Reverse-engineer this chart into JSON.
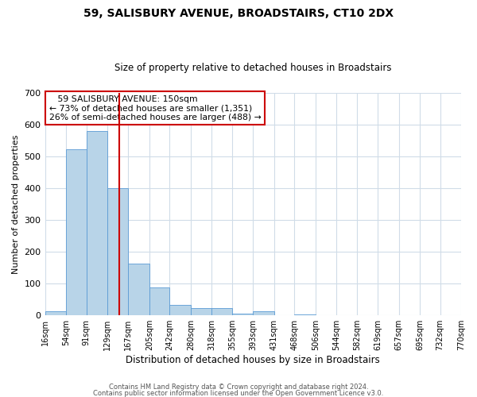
{
  "title": "59, SALISBURY AVENUE, BROADSTAIRS, CT10 2DX",
  "subtitle": "Size of property relative to detached houses in Broadstairs",
  "xlabel": "Distribution of detached houses by size in Broadstairs",
  "ylabel": "Number of detached properties",
  "footer_line1": "Contains HM Land Registry data © Crown copyright and database right 2024.",
  "footer_line2": "Contains public sector information licensed under the Open Government Licence v3.0.",
  "bar_edges": [
    16,
    54,
    91,
    129,
    167,
    205,
    242,
    280,
    318,
    355,
    393,
    431,
    468,
    506,
    544,
    582,
    619,
    657,
    695,
    732,
    770
  ],
  "bar_heights": [
    14,
    521,
    580,
    400,
    163,
    87,
    34,
    22,
    24,
    5,
    12,
    0,
    3,
    0,
    0,
    0,
    0,
    0,
    0,
    0
  ],
  "bar_color": "#b8d4e8",
  "bar_edgecolor": "#5b9bd5",
  "vline_x": 150,
  "vline_color": "#cc0000",
  "annotation_title": "59 SALISBURY AVENUE: 150sqm",
  "annotation_line1": "← 73% of detached houses are smaller (1,351)",
  "annotation_line2": "26% of semi-detached houses are larger (488) →",
  "annotation_box_edgecolor": "#cc0000",
  "ylim": [
    0,
    700
  ],
  "yticks": [
    0,
    100,
    200,
    300,
    400,
    500,
    600,
    700
  ],
  "tick_labels": [
    "16sqm",
    "54sqm",
    "91sqm",
    "129sqm",
    "167sqm",
    "205sqm",
    "242sqm",
    "280sqm",
    "318sqm",
    "355sqm",
    "393sqm",
    "431sqm",
    "468sqm",
    "506sqm",
    "544sqm",
    "582sqm",
    "619sqm",
    "657sqm",
    "695sqm",
    "732sqm",
    "770sqm"
  ],
  "background_color": "#ffffff",
  "grid_color": "#d0dce8",
  "title_fontsize": 10,
  "subtitle_fontsize": 8.5,
  "ylabel_fontsize": 8,
  "xlabel_fontsize": 8.5,
  "footer_fontsize": 6,
  "ytick_fontsize": 8,
  "xtick_fontsize": 7
}
